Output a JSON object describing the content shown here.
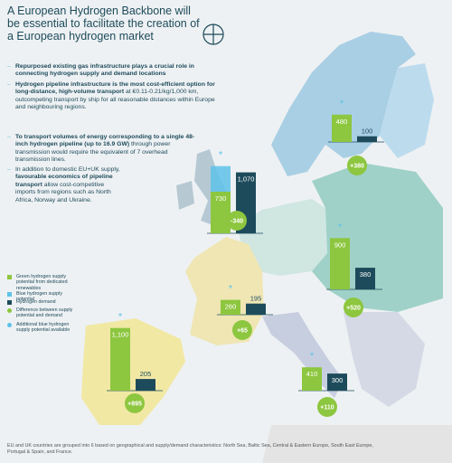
{
  "chart_data": {
    "type": "bar",
    "title": "A European Hydrogen Backbone will be essential to facilitate the creation of a European hydrogen market",
    "bullets": [
      [
        {
          "t": "Repurposed existing gas infrastructure plays a crucial role in connecting hydrogen supply and demand locations",
          "b": true
        }
      ],
      [
        {
          "t": "Hydrogen pipeline infrastructure is the most cost-efficient option for long-distance, high-volume transport",
          "b": true
        },
        {
          "t": " at €0.11-0.21/kg/1,000 km, outcompeting transport by ship for all reasonable distances within Europe and neighbouring regions.",
          "b": false
        }
      ],
      [
        {
          "t": "To transport volumes of energy corresponding to a single 48-inch hydrogen pipeline (up to 16.9 GW)",
          "b": true
        },
        {
          "t": " through power transmission would require the equivalent of 7 overhead transmission lines.",
          "b": false
        }
      ],
      [
        {
          "t": "In addition to domestic EU+UK supply, ",
          "b": false
        },
        {
          "t": "favourable economics of pipeline transport",
          "b": true
        },
        {
          "t": " allow cost-competitive imports from regions such as North Africa, Norway and Ukraine.",
          "b": false
        }
      ]
    ],
    "colors": {
      "supply": "#8dc63f",
      "demand": "#1d4b5b",
      "difference": "#8dc63f",
      "blue": "#5ec2e8"
    },
    "legend": [
      {
        "label": "Green hydrogen supply potential from dedicated renewables",
        "color": "#8dc63f"
      },
      {
        "label": "Blue hydrogen supply potential",
        "color": "#5ec2e8"
      },
      {
        "label": "Hydrogen demand",
        "color": "#1d4b5b"
      },
      {
        "label": "Difference between supply potential and demand",
        "color": "#8dc63f"
      },
      {
        "label": "Additional blue hydrogen supply potential available",
        "color": "#5ec2e8"
      }
    ],
    "regions": [
      {
        "values": [
          480,
          100,
          380
        ],
        "value_labels": [
          "480",
          "100",
          "+380"
        ]
      },
      {
        "values": [
          730,
          1070,
          -340
        ],
        "value_labels": [
          "730",
          "1,070",
          "-340"
        ],
        "blue": 450
      },
      {
        "values": [
          900,
          380,
          520
        ],
        "value_labels": [
          "900",
          "380",
          "+520"
        ]
      },
      {
        "values": [
          260,
          195,
          65
        ],
        "value_labels": [
          "260",
          "195",
          "+65"
        ]
      },
      {
        "values": [
          1100,
          205,
          895
        ],
        "value_labels": [
          "1,100",
          "205",
          "+895"
        ]
      },
      {
        "values": [
          410,
          300,
          110
        ],
        "value_labels": [
          "410",
          "300",
          "+110"
        ]
      }
    ],
    "footnote": "EU and UK countries are grouped into 6 based on geographical and supply/demand characteristics: North Sea, Baltic Sea, Central & Eastern Europe, South East Europe, Portugal & Spain, and France."
  }
}
